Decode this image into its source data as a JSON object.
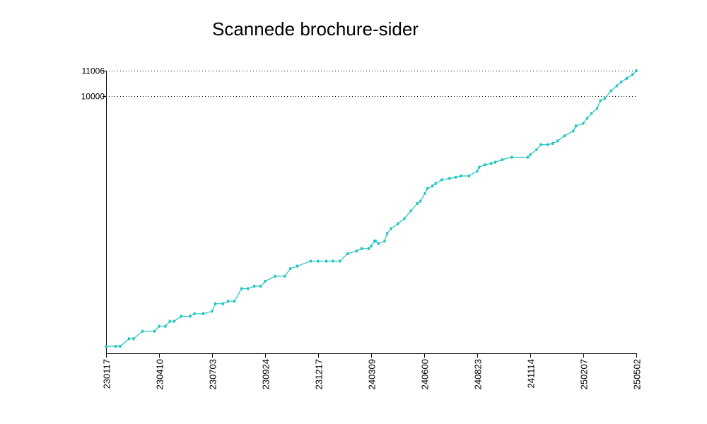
{
  "chart_data": {
    "type": "line",
    "title": "Scannede brochure-sider",
    "xlabel": "",
    "ylabel": "",
    "x_tick_labels": [
      "230117",
      "230410",
      "230703",
      "230924",
      "231217",
      "240309",
      "240600",
      "240823",
      "241114",
      "250207",
      "250502"
    ],
    "y_tick_labels": [
      "11006",
      "10000"
    ],
    "ylim": [
      0,
      11006
    ],
    "reference_lines": [
      11006,
      10000
    ],
    "grid": false,
    "legend": "none",
    "series": [
      {
        "color": "#1fc4bf",
        "x": [
          "230117",
          "230201",
          "230208",
          "230222",
          "230301",
          "230315",
          "230403",
          "230410",
          "230420",
          "230427",
          "230504",
          "230515",
          "230529",
          "230605",
          "230619",
          "230703",
          "230708",
          "230720",
          "230728",
          "230807",
          "230818",
          "230828",
          "230907",
          "230917",
          "230924",
          "231010",
          "231025",
          "231103",
          "231114",
          "231205",
          "231217",
          "231230",
          "240109",
          "240120",
          "240201",
          "240215",
          "240223",
          "240305",
          "240309",
          "240314",
          "240316",
          "240320",
          "240330",
          "240403",
          "240409",
          "240420",
          "240430",
          "240510",
          "240520",
          "240525",
          "240601",
          "240605",
          "240613",
          "240618",
          "240628",
          "240710",
          "240720",
          "240728",
          "240810",
          "240823",
          "240826",
          "240904",
          "240914",
          "240920",
          "241001",
          "241016",
          "241110",
          "241114",
          "241124",
          "241201",
          "241212",
          "241220",
          "241228",
          "250108",
          "250122",
          "250126",
          "250207",
          "250213",
          "250220",
          "250301",
          "250306",
          "250313",
          "250323",
          "250401",
          "250408",
          "250417",
          "250426",
          "250502"
        ],
        "values": [
          0,
          0,
          0,
          300,
          300,
          600,
          600,
          800,
          800,
          1000,
          1000,
          1200,
          1200,
          1300,
          1300,
          1400,
          1700,
          1700,
          1800,
          1800,
          2300,
          2300,
          2400,
          2400,
          2600,
          2800,
          2800,
          3100,
          3200,
          3400,
          3400,
          3400,
          3400,
          3400,
          3700,
          3800,
          3900,
          3900,
          4000,
          4200,
          4200,
          4100,
          4200,
          4500,
          4700,
          4900,
          5100,
          5400,
          5700,
          5800,
          6100,
          6300,
          6400,
          6500,
          6650,
          6700,
          6750,
          6800,
          6800,
          7000,
          7150,
          7250,
          7300,
          7350,
          7450,
          7550,
          7550,
          7650,
          7850,
          8050,
          8050,
          8100,
          8200,
          8400,
          8600,
          8800,
          8900,
          9100,
          9300,
          9500,
          9800,
          9900,
          10200,
          10400,
          10550,
          10700,
          10850,
          11006
        ]
      }
    ]
  }
}
